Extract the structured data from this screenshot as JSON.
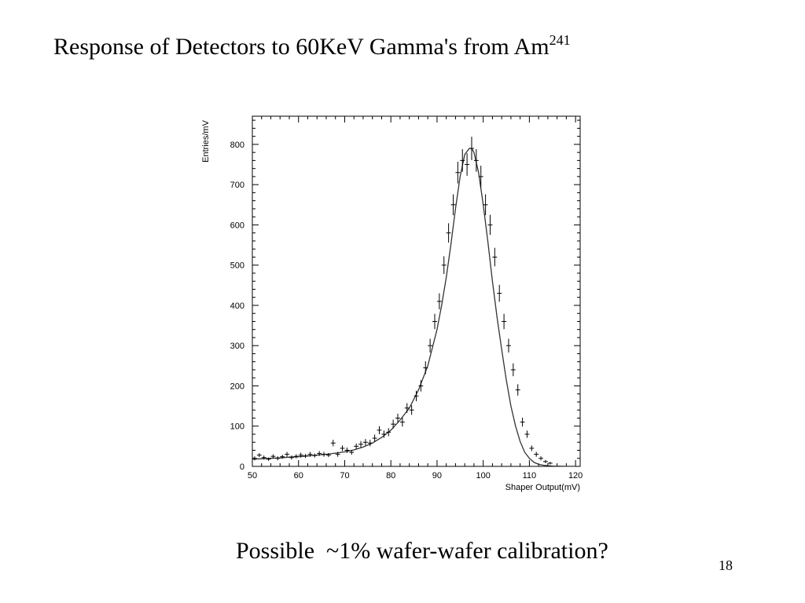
{
  "slide": {
    "title": "Response of Detectors to 60KeV Gamma's from Am",
    "title_superscript": "241",
    "caption": "Possible  ~1% wafer-wafer calibration?",
    "page_number": "18"
  },
  "chart_data": {
    "type": "scatter",
    "title": "",
    "xlabel": "Shaper Output(mV)",
    "ylabel": "Entries/mV",
    "xlim": [
      50,
      121
    ],
    "ylim": [
      0,
      870
    ],
    "x_ticks": [
      50,
      60,
      70,
      80,
      90,
      100,
      110,
      120
    ],
    "y_ticks": [
      0,
      100,
      200,
      300,
      400,
      500,
      600,
      700,
      800
    ],
    "grid": false,
    "legend": "none",
    "series": [
      {
        "kind": "data-points-with-errors",
        "x": [
          50.5,
          51.5,
          52.5,
          53.5,
          54.5,
          55.5,
          56.5,
          57.5,
          58.5,
          59.5,
          60.5,
          61.5,
          62.5,
          63.5,
          64.5,
          65.5,
          66.5,
          67.5,
          68.5,
          69.5,
          70.5,
          71.5,
          72.5,
          73.5,
          74.5,
          75.5,
          76.5,
          77.5,
          78.5,
          79.5,
          80.5,
          81.5,
          82.5,
          83.5,
          84.5,
          85.5,
          86.5,
          87.5,
          88.5,
          89.5,
          90.5,
          91.5,
          92.5,
          93.5,
          94.5,
          95.5,
          96.5,
          97.5,
          98.5,
          99.5,
          100.5,
          101.5,
          102.5,
          103.5,
          104.5,
          105.5,
          106.5,
          107.5,
          108.5,
          109.5,
          110.5,
          111.5,
          112.5,
          113.5,
          114.5
        ],
        "y": [
          20,
          28,
          22,
          18,
          25,
          20,
          24,
          30,
          22,
          25,
          28,
          26,
          30,
          27,
          32,
          30,
          28,
          58,
          30,
          45,
          40,
          35,
          50,
          55,
          60,
          58,
          70,
          90,
          80,
          85,
          105,
          120,
          110,
          145,
          140,
          175,
          200,
          245,
          300,
          360,
          410,
          500,
          580,
          650,
          730,
          760,
          750,
          790,
          760,
          720,
          650,
          600,
          520,
          430,
          360,
          300,
          240,
          190,
          110,
          80,
          45,
          30,
          20,
          12,
          8
        ],
        "err": [
          5,
          5,
          5,
          4,
          5,
          5,
          5,
          6,
          5,
          5,
          6,
          5,
          6,
          5,
          6,
          6,
          5,
          8,
          6,
          7,
          7,
          6,
          7,
          8,
          8,
          8,
          9,
          10,
          9,
          10,
          11,
          11,
          11,
          12,
          12,
          13,
          14,
          16,
          17,
          19,
          20,
          22,
          24,
          26,
          27,
          28,
          28,
          29,
          28,
          27,
          26,
          25,
          23,
          21,
          19,
          17,
          16,
          14,
          11,
          9,
          7,
          6,
          5,
          4,
          3
        ]
      },
      {
        "kind": "fit-curve",
        "x": [
          50,
          52,
          54,
          56,
          58,
          60,
          62,
          64,
          66,
          68,
          70,
          72,
          74,
          76,
          78,
          80,
          82,
          84,
          86,
          88,
          90,
          91,
          92,
          93,
          94,
          95,
          96,
          97,
          97.5,
          98,
          99,
          100,
          101,
          102,
          103,
          104,
          105,
          106,
          107,
          108,
          109,
          110,
          111,
          112,
          113,
          114,
          115,
          116,
          118,
          120
        ],
        "y": [
          18,
          19,
          20,
          21,
          23,
          24,
          26,
          28,
          30,
          33,
          36,
          41,
          48,
          58,
          72,
          90,
          115,
          145,
          190,
          250,
          340,
          400,
          470,
          550,
          640,
          720,
          775,
          790,
          790,
          780,
          730,
          650,
          560,
          460,
          370,
          290,
          215,
          150,
          100,
          62,
          35,
          20,
          10,
          5,
          3,
          2,
          1,
          0.5,
          0.2,
          0.1
        ]
      }
    ]
  }
}
